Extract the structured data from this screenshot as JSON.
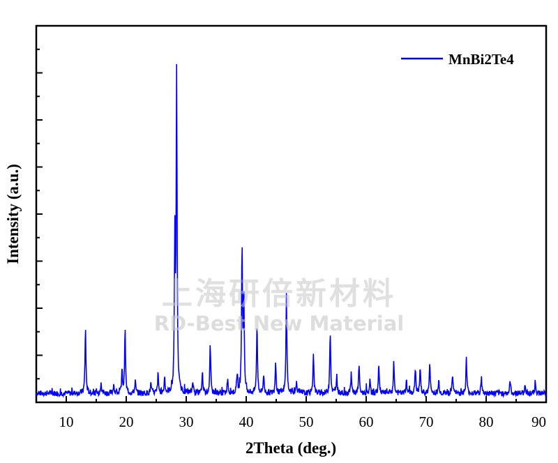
{
  "chart_data": {
    "type": "line",
    "xlabel": "2Theta (deg.)",
    "ylabel": "Intensity (a.u.)",
    "xlim": [
      5,
      90
    ],
    "xticks": [
      10,
      20,
      30,
      40,
      50,
      60,
      70,
      80,
      90
    ],
    "ylim": [
      0,
      100
    ],
    "yticks_labeled": false,
    "baseline": 2,
    "legend_position": "top-right",
    "series": [
      {
        "name": "MnBi2Te4",
        "color": "#0000ff",
        "peaks": [
          {
            "x": 13.2,
            "y": 21
          },
          {
            "x": 15.8,
            "y": 4
          },
          {
            "x": 17.9,
            "y": 3
          },
          {
            "x": 19.3,
            "y": 7
          },
          {
            "x": 19.8,
            "y": 20
          },
          {
            "x": 21.5,
            "y": 4
          },
          {
            "x": 24.1,
            "y": 3
          },
          {
            "x": 25.3,
            "y": 6
          },
          {
            "x": 26.4,
            "y": 5
          },
          {
            "x": 28.1,
            "y": 48
          },
          {
            "x": 28.4,
            "y": 100
          },
          {
            "x": 31.1,
            "y": 4
          },
          {
            "x": 32.7,
            "y": 6
          },
          {
            "x": 34.0,
            "y": 15
          },
          {
            "x": 36.9,
            "y": 5
          },
          {
            "x": 38.5,
            "y": 6
          },
          {
            "x": 39.3,
            "y": 46
          },
          {
            "x": 39.6,
            "y": 30
          },
          {
            "x": 41.8,
            "y": 22
          },
          {
            "x": 42.9,
            "y": 6
          },
          {
            "x": 44.9,
            "y": 10
          },
          {
            "x": 46.7,
            "y": 32
          },
          {
            "x": 48.4,
            "y": 4
          },
          {
            "x": 51.2,
            "y": 13
          },
          {
            "x": 54.0,
            "y": 20
          },
          {
            "x": 55.1,
            "y": 5
          },
          {
            "x": 57.5,
            "y": 6
          },
          {
            "x": 58.8,
            "y": 9
          },
          {
            "x": 60.6,
            "y": 4
          },
          {
            "x": 62.1,
            "y": 9
          },
          {
            "x": 64.6,
            "y": 10
          },
          {
            "x": 66.7,
            "y": 4
          },
          {
            "x": 68.2,
            "y": 8
          },
          {
            "x": 69.0,
            "y": 8
          },
          {
            "x": 70.6,
            "y": 10
          },
          {
            "x": 72.1,
            "y": 4
          },
          {
            "x": 74.4,
            "y": 6
          },
          {
            "x": 76.7,
            "y": 11
          },
          {
            "x": 79.2,
            "y": 5
          },
          {
            "x": 84.0,
            "y": 4
          },
          {
            "x": 86.5,
            "y": 3
          },
          {
            "x": 88.2,
            "y": 3
          }
        ]
      }
    ]
  },
  "watermark": {
    "line1": "上海研倍新材料",
    "line2": "RD-Best New Material"
  }
}
